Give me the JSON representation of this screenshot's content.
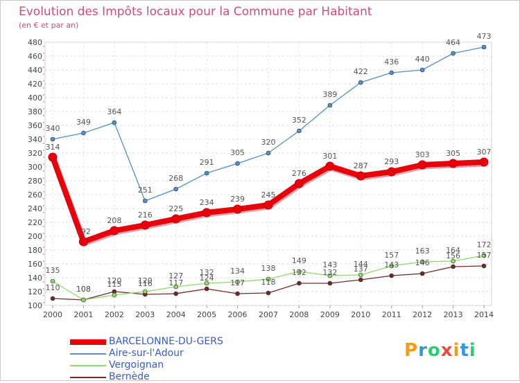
{
  "title": "Evolution des Impôts locaux pour la Commune par Habitant",
  "subtitle": "(en € et par an)",
  "logo": {
    "text": "Proxiti",
    "colors": [
      "#f39c12",
      "#3498db",
      "#2ecc71",
      "#e74c3c",
      "#f39c12",
      "#3498db",
      "#2ecc71"
    ]
  },
  "chart_data": {
    "type": "line",
    "categories": [
      "2000",
      "2001",
      "2002",
      "2003",
      "2004",
      "2005",
      "2006",
      "2007",
      "2008",
      "2009",
      "2010",
      "2011",
      "2012",
      "2013",
      "2014"
    ],
    "ylim": [
      100,
      480
    ],
    "yticks": [
      100,
      120,
      140,
      160,
      180,
      200,
      220,
      240,
      260,
      280,
      300,
      320,
      340,
      360,
      380,
      400,
      420,
      440,
      460,
      480
    ],
    "grid": true,
    "legend_placement": "bottom-left",
    "series": [
      {
        "name": "BARCELONNE-DU-GERS",
        "color": "#e8000b",
        "width": 8,
        "values": [
          314,
          192,
          208,
          216,
          225,
          234,
          239,
          245,
          276,
          301,
          287,
          293,
          303,
          305,
          307
        ]
      },
      {
        "name": "Aire-sur-l'Adour",
        "color": "#4f8fcc",
        "width": 1.3,
        "values": [
          340,
          349,
          364,
          251,
          268,
          291,
          305,
          320,
          352,
          389,
          422,
          436,
          440,
          464,
          473
        ]
      },
      {
        "name": "Vergoignan",
        "color": "#8fd966",
        "width": 1.3,
        "values": [
          135,
          108,
          115,
          120,
          127,
          132,
          134,
          138,
          149,
          143,
          144,
          157,
          163,
          164,
          172
        ]
      },
      {
        "name": "Bernède",
        "color": "#6e2a2a",
        "width": 1.3,
        "values": [
          110,
          108,
          120,
          116,
          117,
          124,
          117,
          118,
          132,
          132,
          137,
          143,
          146,
          156,
          157
        ]
      }
    ]
  }
}
